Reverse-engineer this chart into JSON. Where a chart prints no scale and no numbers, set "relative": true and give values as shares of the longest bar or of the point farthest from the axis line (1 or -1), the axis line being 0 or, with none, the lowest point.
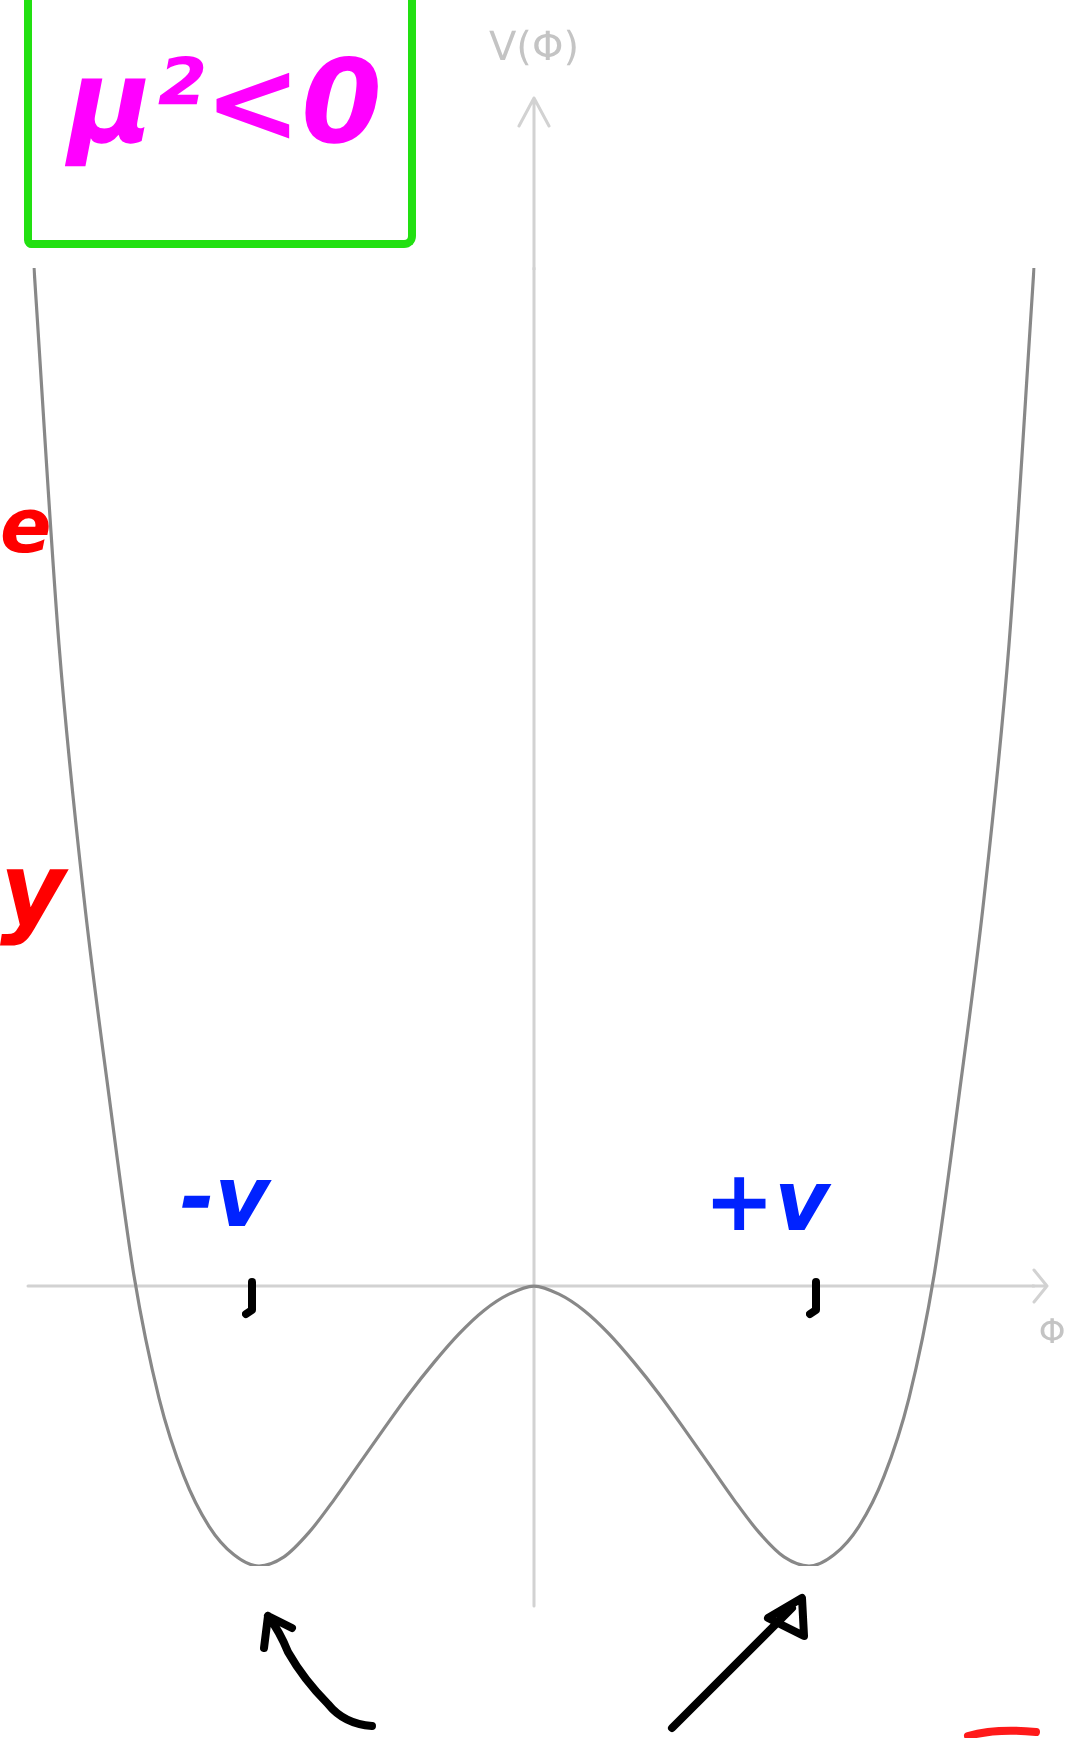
{
  "chart_data": {
    "type": "line",
    "xlabel": "Φ",
    "ylabel": "V(Φ)",
    "categories": [
      null,
      null,
      null,
      null,
      null,
      null,
      null,
      null,
      null,
      null,
      null,
      null,
      null,
      null,
      null,
      null,
      null,
      null,
      null,
      null,
      null,
      null,
      null,
      null,
      null,
      null,
      null,
      null,
      null,
      null,
      null,
      null,
      null,
      null,
      null,
      null,
      null,
      null,
      null,
      null,
      null
    ],
    "relative": true,
    "series": [
      {
        "color": "#888888",
        "values": [
          1,
          0.63,
          0.381,
          0.187,
          0.01,
          -0.11,
          -0.187,
          -0.236,
          -0.264,
          -0.275,
          -0.266,
          -0.242,
          -0.21,
          -0.175,
          -0.14,
          -0.106,
          -0.075,
          -0.047,
          -0.024,
          -0.008,
          0,
          -0.008,
          -0.024,
          -0.047,
          -0.075,
          -0.106,
          -0.14,
          -0.175,
          -0.21,
          -0.242,
          -0.266,
          -0.275,
          -0.264,
          -0.236,
          -0.187,
          -0.11,
          0.01,
          0.187,
          0.381,
          0.63,
          1
        ]
      }
    ],
    "annotations": [
      "μ²<0",
      "-v",
      "+v",
      "e",
      "y"
    ],
    "marker": "none",
    "line_style": "solid"
  }
}
